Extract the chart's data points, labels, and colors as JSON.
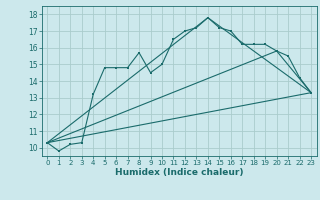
{
  "title": "",
  "xlabel": "Humidex (Indice chaleur)",
  "background_color": "#cce8ec",
  "grid_color": "#aacccc",
  "line_color": "#1a6b6b",
  "xlim": [
    -0.5,
    23.5
  ],
  "ylim": [
    9.5,
    18.5
  ],
  "xticks": [
    0,
    1,
    2,
    3,
    4,
    5,
    6,
    7,
    8,
    9,
    10,
    11,
    12,
    13,
    14,
    15,
    16,
    17,
    18,
    19,
    20,
    21,
    22,
    23
  ],
  "yticks": [
    10,
    11,
    12,
    13,
    14,
    15,
    16,
    17,
    18
  ],
  "series1_x": [
    0,
    1,
    2,
    3,
    4,
    5,
    6,
    7,
    8,
    9,
    10,
    11,
    12,
    13,
    14,
    15,
    16,
    17,
    18,
    19,
    20,
    21,
    22,
    23
  ],
  "series1_y": [
    10.3,
    9.8,
    10.2,
    10.3,
    13.2,
    14.8,
    14.8,
    14.8,
    15.7,
    14.5,
    15.0,
    16.5,
    17.0,
    17.2,
    17.8,
    17.2,
    17.0,
    16.2,
    16.2,
    16.2,
    15.8,
    15.5,
    14.2,
    13.3
  ],
  "series2_x": [
    0,
    14,
    23
  ],
  "series2_y": [
    10.3,
    17.8,
    13.3
  ],
  "series3_x": [
    0,
    20,
    23
  ],
  "series3_y": [
    10.3,
    15.8,
    13.3
  ],
  "series4_x": [
    0,
    23
  ],
  "series4_y": [
    10.3,
    13.3
  ],
  "tick_fontsize": 5.5,
  "xlabel_fontsize": 6.5
}
